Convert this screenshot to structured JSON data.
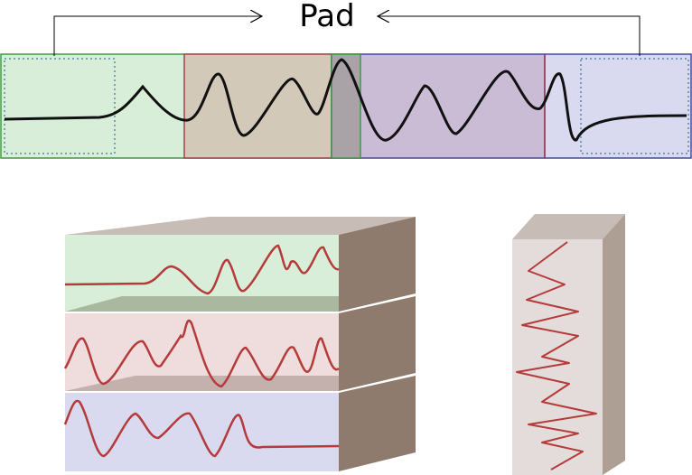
{
  "label": "Pad"
}
